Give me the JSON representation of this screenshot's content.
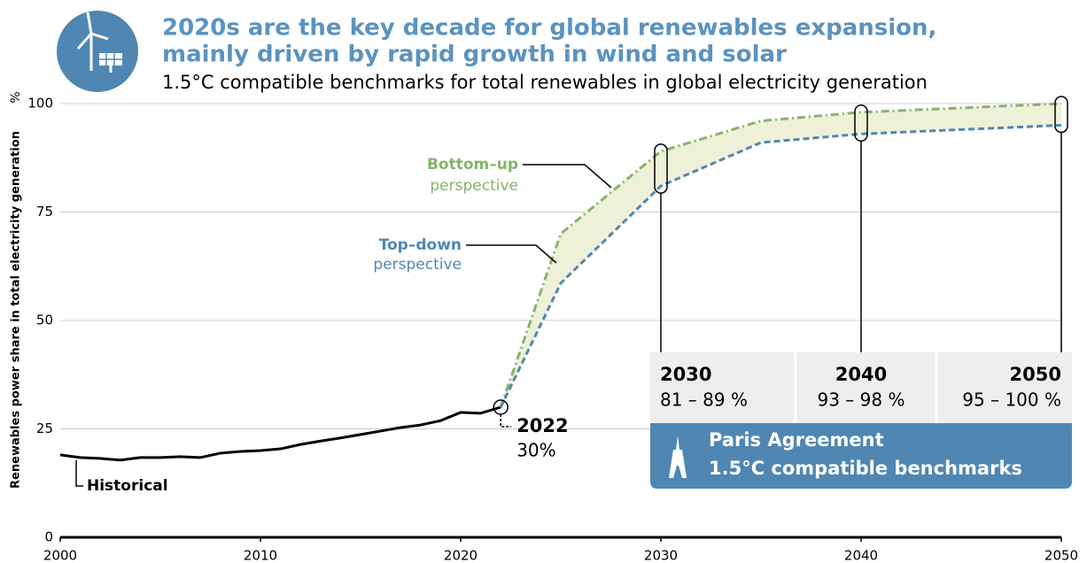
{
  "chart_data": {
    "type": "line",
    "title": [
      "2020s are the key decade for global renewables expansion,",
      "mainly driven by rapid growth in wind and solar"
    ],
    "subtitle": "1.5°C compatible benchmarks for total renewables in global electricity generation",
    "y_label": "Renewables power share in total electricity generation",
    "y_unit": "%",
    "xlim": [
      2000,
      2050
    ],
    "xticks": [
      2000,
      2010,
      2020,
      2030,
      2040,
      2050
    ],
    "ylim": [
      0,
      100
    ],
    "yticks": [
      0,
      25,
      50,
      75,
      100
    ],
    "grid": true,
    "series": [
      {
        "name": "Historical",
        "color": "#000000",
        "style": "solid",
        "x": [
          2000,
          2001,
          2002,
          2003,
          2004,
          2005,
          2006,
          2007,
          2008,
          2009,
          2010,
          2011,
          2012,
          2013,
          2014,
          2015,
          2016,
          2017,
          2018,
          2019,
          2020,
          2021,
          2022
        ],
        "values": [
          19.0,
          18.4,
          18.2,
          17.8,
          18.4,
          18.4,
          18.6,
          18.4,
          19.4,
          19.8,
          20.0,
          20.4,
          21.4,
          22.2,
          22.9,
          23.7,
          24.5,
          25.3,
          25.9,
          26.9,
          28.8,
          28.6,
          30.0
        ]
      },
      {
        "name": "Bottom–up",
        "note": "perspective",
        "color": "#86b36a",
        "style": "dashdot",
        "x": [
          2022,
          2025,
          2030,
          2035,
          2040,
          2050
        ],
        "values": [
          30,
          70,
          89,
          96,
          98,
          100
        ]
      },
      {
        "name": "Top–down",
        "note": "perspective",
        "color": "#4f87b2",
        "style": "dashed",
        "x": [
          2022,
          2025,
          2030,
          2035,
          2040,
          2050
        ],
        "values": [
          30,
          58.6,
          81,
          91,
          93,
          95
        ]
      }
    ],
    "annotation": {
      "year": "2022",
      "value": "30%"
    },
    "benchmarks": [
      {
        "year": "2030",
        "range": "81 – 89 %"
      },
      {
        "year": "2040",
        "range": "93 – 98 %"
      },
      {
        "year": "2050",
        "range": "95 – 100 %"
      }
    ],
    "banner": [
      "Paris Agreement",
      "1.5°C compatible benchmarks"
    ]
  }
}
